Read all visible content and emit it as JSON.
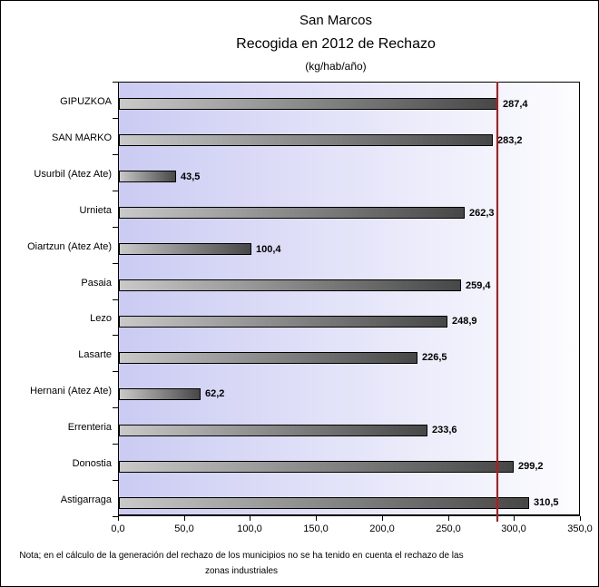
{
  "figure": {
    "title": "San Marcos",
    "subtitle": "Recogida en 2012 de Rechazo",
    "units_label": "(kg/hab/año)",
    "note_line1": "Nota; en el cálculo de la generación del rechazo de los municipios no se ha tenido en cuenta el rechazo de las",
    "note_line2": "zonas industriales"
  },
  "chart_data": {
    "type": "bar",
    "orientation": "horizontal",
    "title": "San Marcos",
    "subtitle": "Recogida en 2012 de Rechazo",
    "units": "(kg/hab/año)",
    "categories": [
      "GIPUZKOA",
      "SAN MARKO",
      "Usurbil (Atez Ate)",
      "Urnieta",
      "Oiartzun (Atez Ate)",
      "Pasaia",
      "Lezo",
      "Lasarte",
      "Hernani (Atez Ate)",
      "Errenteria",
      "Donostia",
      "Astigarraga"
    ],
    "values": [
      287.4,
      283.2,
      43.5,
      262.3,
      100.4,
      259.4,
      248.9,
      226.5,
      62.2,
      233.6,
      299.2,
      310.5
    ],
    "value_labels": [
      "287,4",
      "283,2",
      "43,5",
      "262,3",
      "100,4",
      "259,4",
      "248,9",
      "226,5",
      "62,2",
      "233,6",
      "299,2",
      "310,5"
    ],
    "xlim": [
      0,
      350
    ],
    "x_tick_step": 50,
    "x_tick_labels": [
      "0,0",
      "50,0",
      "100,0",
      "150,0",
      "200,0",
      "250,0",
      "300,0",
      "350,0"
    ],
    "grid": false,
    "legend": false,
    "reference_line": {
      "value": 287.4
    },
    "colors": {
      "bar_gradient_start": "#c9c9c9",
      "bar_gradient_end": "#474747",
      "bar_border": "#000000",
      "plot_bg_gradient_start": "#cbcbf3",
      "plot_bg_gradient_end": "#fdfdff",
      "reference_line": "#cc1111",
      "text": "#000000"
    }
  }
}
